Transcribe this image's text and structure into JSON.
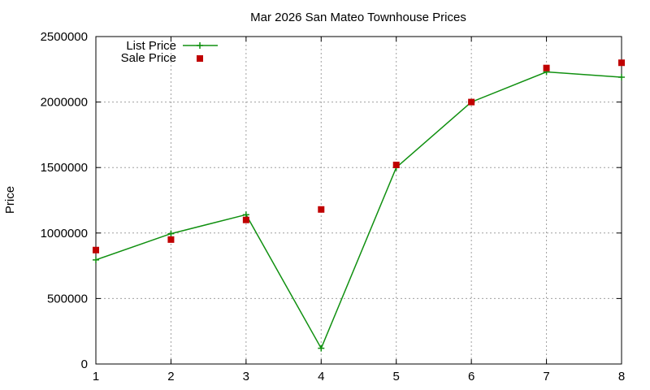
{
  "chart_data": {
    "type": "line",
    "title": "Mar 2026 San Mateo Townhouse Prices",
    "xlabel": "",
    "ylabel": "Price",
    "x": [
      1,
      2,
      3,
      4,
      5,
      6,
      7,
      8
    ],
    "xlim": [
      1,
      8
    ],
    "ylim": [
      0,
      2500000
    ],
    "x_ticks": [
      "1",
      "2",
      "3",
      "4",
      "5",
      "6",
      "7",
      "8"
    ],
    "y_ticks": [
      "0",
      "500000",
      "1000000",
      "1500000",
      "2000000",
      "2500000"
    ],
    "grid": true,
    "legend_position": "top-left",
    "series": [
      {
        "name": "List Price",
        "style": "line-with-plus-markers",
        "color": "#109010",
        "values": [
          795000,
          995000,
          1140000,
          120000,
          1500000,
          2000000,
          2230000,
          2190000
        ]
      },
      {
        "name": "Sale Price",
        "style": "square-markers",
        "color": "#c00000",
        "values": [
          870000,
          950000,
          1100000,
          1180000,
          1520000,
          2000000,
          2260000,
          2300000
        ]
      }
    ]
  }
}
